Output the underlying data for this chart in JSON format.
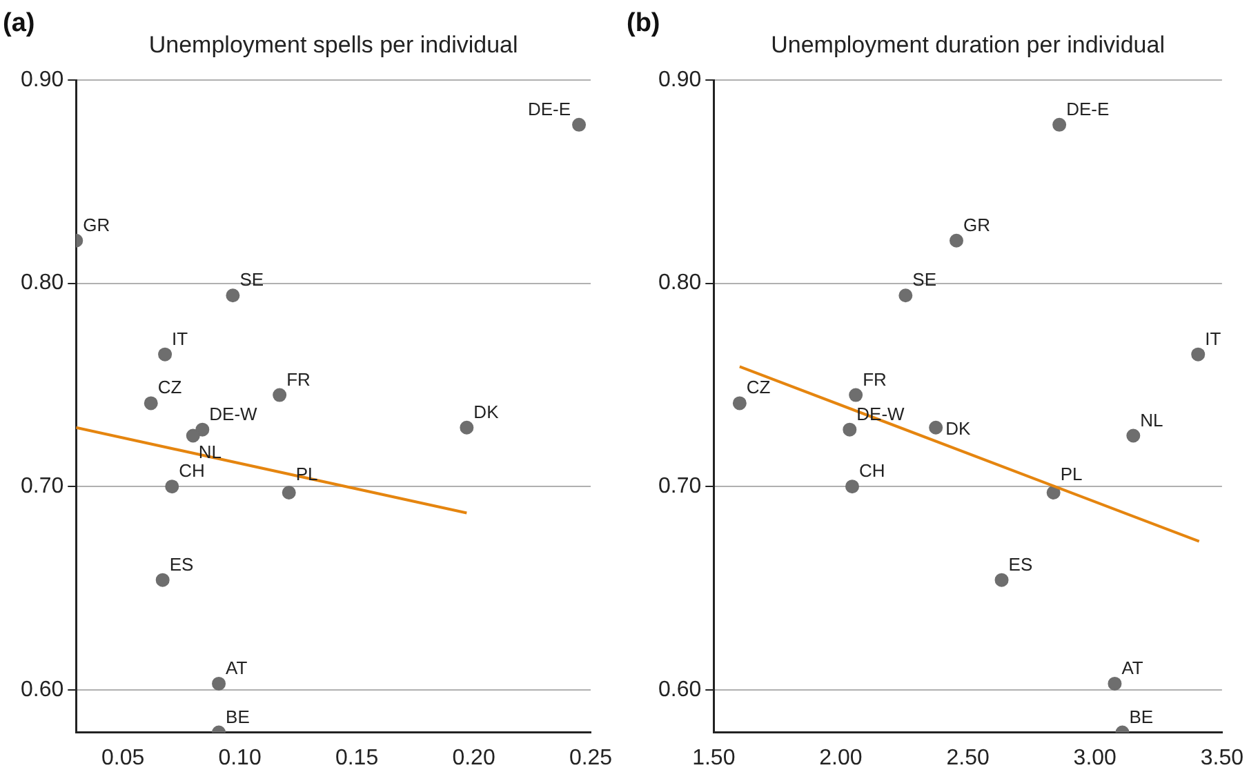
{
  "chart_data": [
    {
      "type": "scatter",
      "title": "Unemployment spells per individual",
      "grid": "y",
      "xlim": [
        0.03,
        0.25
      ],
      "xticks": [
        0.05,
        {
          "value": 0.1,
          "label": "0.10"
        },
        0.15,
        {
          "value": 0.2,
          "label": "0.20"
        },
        0.25
      ],
      "ylim": [
        0.579,
        0.9
      ],
      "yticks": [
        {
          "value": 0.6,
          "label": "0.60"
        },
        {
          "value": 0.7,
          "label": "0.70"
        },
        {
          "value": 0.8,
          "label": "0.80"
        },
        {
          "value": 0.9,
          "label": "0.90"
        }
      ],
      "series": [
        {
          "marker": "circle",
          "color": "#6e6e6e",
          "x": [
            0.03,
            0.097,
            0.068,
            0.062,
            0.117,
            0.084,
            0.08,
            0.197,
            0.071,
            0.121,
            0.067,
            0.091,
            0.091,
            0.245
          ],
          "values": [
            0.821,
            0.794,
            0.765,
            0.741,
            0.745,
            0.728,
            0.725,
            0.729,
            0.7,
            0.697,
            0.654,
            0.603,
            0.579,
            0.878
          ]
        },
        {
          "type": "line",
          "color": "#e5850f",
          "x": [
            0.03,
            0.197
          ],
          "values": [
            0.729,
            0.687
          ]
        }
      ],
      "annotations": [
        "(a)",
        {
          "text": "GR",
          "x": 0.03,
          "y": 0.821
        },
        {
          "text": "SE",
          "x": 0.097,
          "y": 0.794
        },
        {
          "text": "IT",
          "x": 0.068,
          "y": 0.765
        },
        {
          "text": "CZ",
          "x": 0.062,
          "y": 0.741
        },
        {
          "text": "FR",
          "x": 0.117,
          "y": 0.745
        },
        {
          "text": "DE-W",
          "x": 0.084,
          "y": 0.728
        },
        {
          "text": "NL",
          "x": 0.08,
          "y": 0.725
        },
        {
          "text": "DK",
          "x": 0.197,
          "y": 0.729
        },
        {
          "text": "CH",
          "x": 0.071,
          "y": 0.7
        },
        {
          "text": "PL",
          "x": 0.121,
          "y": 0.697
        },
        {
          "text": "ES",
          "x": 0.067,
          "y": 0.654
        },
        {
          "text": "AT",
          "x": 0.091,
          "y": 0.603
        },
        {
          "text": "BE",
          "x": 0.091,
          "y": 0.579
        },
        {
          "text": "DE-E",
          "x": 0.245,
          "y": 0.878
        }
      ]
    },
    {
      "type": "scatter",
      "title": "Unemployment duration per individual",
      "grid": "y",
      "xlim": [
        1.5,
        3.5
      ],
      "xticks": [
        {
          "value": 1.5,
          "label": "1.50"
        },
        {
          "value": 2,
          "label": "2.00"
        },
        {
          "value": 2.5,
          "label": "2.50"
        },
        {
          "value": 3,
          "label": "3.00"
        },
        {
          "value": 3.5,
          "label": "3.50"
        }
      ],
      "ylim": [
        0.579,
        0.9
      ],
      "yticks": [
        {
          "value": 0.6,
          "label": "0.60"
        },
        {
          "value": 0.7,
          "label": "0.70"
        },
        {
          "value": 0.8,
          "label": "0.80"
        },
        {
          "value": 0.9,
          "label": "0.90"
        }
      ],
      "series": [
        {
          "marker": "circle",
          "color": "#6e6e6e",
          "x": [
            2.455,
            2.255,
            3.406,
            1.602,
            2.059,
            2.035,
            3.151,
            2.374,
            2.045,
            2.837,
            2.633,
            3.078,
            3.108,
            2.86
          ],
          "values": [
            0.821,
            0.794,
            0.765,
            0.741,
            0.745,
            0.728,
            0.725,
            0.729,
            0.7,
            0.697,
            0.654,
            0.603,
            0.579,
            0.878
          ]
        },
        {
          "type": "line",
          "color": "#e5850f",
          "x": [
            1.602,
            3.41
          ],
          "values": [
            0.759,
            0.673
          ]
        }
      ],
      "annotations": [
        "(b)",
        {
          "text": "GR",
          "x": 2.455,
          "y": 0.821
        },
        {
          "text": "SE",
          "x": 2.255,
          "y": 0.794
        },
        {
          "text": "IT",
          "x": 3.406,
          "y": 0.765
        },
        {
          "text": "CZ",
          "x": 1.602,
          "y": 0.741
        },
        {
          "text": "FR",
          "x": 2.059,
          "y": 0.745
        },
        {
          "text": "DE-W",
          "x": 2.035,
          "y": 0.728
        },
        {
          "text": "NL",
          "x": 3.151,
          "y": 0.725
        },
        {
          "text": "DK",
          "x": 2.374,
          "y": 0.729
        },
        {
          "text": "CH",
          "x": 2.045,
          "y": 0.7
        },
        {
          "text": "PL",
          "x": 2.837,
          "y": 0.697
        },
        {
          "text": "ES",
          "x": 2.633,
          "y": 0.654
        },
        {
          "text": "AT",
          "x": 3.078,
          "y": 0.603
        },
        {
          "text": "BE",
          "x": 3.108,
          "y": 0.579
        },
        {
          "text": "DE-E",
          "x": 2.86,
          "y": 0.878
        }
      ]
    }
  ]
}
